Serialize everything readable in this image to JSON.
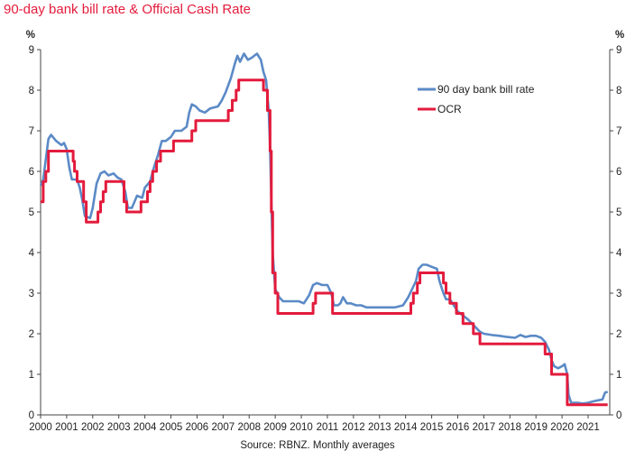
{
  "title": "90-day bank bill rate & Official Cash Rate",
  "source": "Source: RBNZ. Monthly averages",
  "colors": {
    "title": "#e31b3c",
    "bill": "#5b8ac6",
    "ocr": "#e31b3c",
    "axis": "#444444"
  },
  "chart_data": {
    "type": "line",
    "title": "90-day bank bill rate & Official Cash Rate",
    "y_unit_left": "%",
    "y_unit_right": "%",
    "ylim": [
      0,
      9
    ],
    "y_ticks": [
      0,
      1,
      2,
      3,
      4,
      5,
      6,
      7,
      8,
      9
    ],
    "xlim": [
      2000,
      2021.83
    ],
    "x_ticks": [
      2000,
      2001,
      2002,
      2003,
      2004,
      2005,
      2006,
      2007,
      2008,
      2009,
      2010,
      2011,
      2012,
      2013,
      2014,
      2015,
      2016,
      2017,
      2018,
      2019,
      2020,
      2021
    ],
    "grid": false,
    "legend_position": "top-right",
    "series": [
      {
        "name": "90 day bank bill rate",
        "color": "#5b8ac6",
        "points": [
          [
            2000.0,
            5.65
          ],
          [
            2000.1,
            5.8
          ],
          [
            2000.2,
            6.3
          ],
          [
            2000.3,
            6.8
          ],
          [
            2000.4,
            6.9
          ],
          [
            2000.6,
            6.75
          ],
          [
            2000.8,
            6.65
          ],
          [
            2000.9,
            6.7
          ],
          [
            2001.0,
            6.55
          ],
          [
            2001.1,
            6.1
          ],
          [
            2001.2,
            5.8
          ],
          [
            2001.4,
            5.8
          ],
          [
            2001.5,
            5.6
          ],
          [
            2001.6,
            5.3
          ],
          [
            2001.7,
            4.9
          ],
          [
            2001.9,
            4.85
          ],
          [
            2002.0,
            5.1
          ],
          [
            2002.15,
            5.7
          ],
          [
            2002.3,
            5.95
          ],
          [
            2002.45,
            6.0
          ],
          [
            2002.6,
            5.9
          ],
          [
            2002.8,
            5.95
          ],
          [
            2002.95,
            5.85
          ],
          [
            2003.1,
            5.8
          ],
          [
            2003.25,
            5.5
          ],
          [
            2003.35,
            5.1
          ],
          [
            2003.5,
            5.1
          ],
          [
            2003.6,
            5.25
          ],
          [
            2003.7,
            5.4
          ],
          [
            2003.9,
            5.35
          ],
          [
            2004.0,
            5.6
          ],
          [
            2004.2,
            5.75
          ],
          [
            2004.35,
            6.1
          ],
          [
            2004.5,
            6.4
          ],
          [
            2004.65,
            6.75
          ],
          [
            2004.8,
            6.75
          ],
          [
            2005.0,
            6.85
          ],
          [
            2005.15,
            7.0
          ],
          [
            2005.4,
            7.0
          ],
          [
            2005.6,
            7.1
          ],
          [
            2005.7,
            7.45
          ],
          [
            2005.8,
            7.65
          ],
          [
            2005.95,
            7.6
          ],
          [
            2006.1,
            7.5
          ],
          [
            2006.3,
            7.45
          ],
          [
            2006.5,
            7.55
          ],
          [
            2006.8,
            7.6
          ],
          [
            2006.95,
            7.75
          ],
          [
            2007.1,
            7.95
          ],
          [
            2007.3,
            8.3
          ],
          [
            2007.45,
            8.65
          ],
          [
            2007.55,
            8.85
          ],
          [
            2007.65,
            8.7
          ],
          [
            2007.8,
            8.9
          ],
          [
            2007.95,
            8.75
          ],
          [
            2008.1,
            8.8
          ],
          [
            2008.3,
            8.9
          ],
          [
            2008.45,
            8.75
          ],
          [
            2008.55,
            8.45
          ],
          [
            2008.65,
            8.25
          ],
          [
            2008.75,
            7.5
          ],
          [
            2008.8,
            6.6
          ],
          [
            2008.85,
            5.3
          ],
          [
            2008.9,
            4.0
          ],
          [
            2009.0,
            3.1
          ],
          [
            2009.15,
            2.9
          ],
          [
            2009.3,
            2.8
          ],
          [
            2009.6,
            2.8
          ],
          [
            2009.9,
            2.8
          ],
          [
            2010.1,
            2.75
          ],
          [
            2010.3,
            2.95
          ],
          [
            2010.45,
            3.2
          ],
          [
            2010.6,
            3.25
          ],
          [
            2010.8,
            3.2
          ],
          [
            2011.0,
            3.2
          ],
          [
            2011.15,
            3.0
          ],
          [
            2011.25,
            2.7
          ],
          [
            2011.4,
            2.7
          ],
          [
            2011.5,
            2.75
          ],
          [
            2011.6,
            2.9
          ],
          [
            2011.75,
            2.75
          ],
          [
            2011.9,
            2.75
          ],
          [
            2012.1,
            2.7
          ],
          [
            2012.3,
            2.7
          ],
          [
            2012.5,
            2.65
          ],
          [
            2012.8,
            2.65
          ],
          [
            2013.0,
            2.65
          ],
          [
            2013.3,
            2.65
          ],
          [
            2013.6,
            2.65
          ],
          [
            2013.9,
            2.7
          ],
          [
            2014.1,
            2.9
          ],
          [
            2014.25,
            3.1
          ],
          [
            2014.4,
            3.3
          ],
          [
            2014.5,
            3.6
          ],
          [
            2014.65,
            3.7
          ],
          [
            2014.8,
            3.7
          ],
          [
            2015.0,
            3.65
          ],
          [
            2015.2,
            3.6
          ],
          [
            2015.3,
            3.3
          ],
          [
            2015.45,
            3.0
          ],
          [
            2015.55,
            2.85
          ],
          [
            2015.7,
            2.85
          ],
          [
            2015.85,
            2.7
          ],
          [
            2016.0,
            2.55
          ],
          [
            2016.2,
            2.45
          ],
          [
            2016.4,
            2.35
          ],
          [
            2016.55,
            2.25
          ],
          [
            2016.7,
            2.15
          ],
          [
            2016.85,
            2.05
          ],
          [
            2017.0,
            2.0
          ],
          [
            2017.3,
            1.97
          ],
          [
            2017.6,
            1.95
          ],
          [
            2017.9,
            1.92
          ],
          [
            2018.2,
            1.9
          ],
          [
            2018.4,
            1.97
          ],
          [
            2018.6,
            1.92
          ],
          [
            2018.8,
            1.95
          ],
          [
            2019.0,
            1.95
          ],
          [
            2019.2,
            1.9
          ],
          [
            2019.35,
            1.8
          ],
          [
            2019.5,
            1.6
          ],
          [
            2019.6,
            1.35
          ],
          [
            2019.7,
            1.2
          ],
          [
            2019.85,
            1.15
          ],
          [
            2020.0,
            1.2
          ],
          [
            2020.1,
            1.25
          ],
          [
            2020.2,
            1.0
          ],
          [
            2020.25,
            0.5
          ],
          [
            2020.35,
            0.3
          ],
          [
            2020.6,
            0.3
          ],
          [
            2020.8,
            0.28
          ],
          [
            2021.0,
            0.3
          ],
          [
            2021.3,
            0.35
          ],
          [
            2021.55,
            0.38
          ],
          [
            2021.65,
            0.55
          ],
          [
            2021.75,
            0.57
          ]
        ]
      },
      {
        "name": "OCR",
        "color": "#e31b3c",
        "points": [
          [
            2000.0,
            5.25
          ],
          [
            2000.1,
            5.25
          ],
          [
            2000.1,
            5.75
          ],
          [
            2000.2,
            5.75
          ],
          [
            2000.2,
            6.0
          ],
          [
            2000.3,
            6.0
          ],
          [
            2000.3,
            6.5
          ],
          [
            2001.25,
            6.5
          ],
          [
            2001.25,
            6.25
          ],
          [
            2001.3,
            6.25
          ],
          [
            2001.3,
            6.0
          ],
          [
            2001.4,
            6.0
          ],
          [
            2001.4,
            5.75
          ],
          [
            2001.65,
            5.75
          ],
          [
            2001.65,
            5.25
          ],
          [
            2001.75,
            5.25
          ],
          [
            2001.75,
            4.75
          ],
          [
            2002.2,
            4.75
          ],
          [
            2002.2,
            5.0
          ],
          [
            2002.3,
            5.0
          ],
          [
            2002.3,
            5.25
          ],
          [
            2002.4,
            5.25
          ],
          [
            2002.4,
            5.5
          ],
          [
            2002.5,
            5.5
          ],
          [
            2002.5,
            5.75
          ],
          [
            2003.2,
            5.75
          ],
          [
            2003.2,
            5.25
          ],
          [
            2003.3,
            5.25
          ],
          [
            2003.3,
            5.0
          ],
          [
            2003.85,
            5.0
          ],
          [
            2003.85,
            5.25
          ],
          [
            2004.1,
            5.25
          ],
          [
            2004.1,
            5.5
          ],
          [
            2004.2,
            5.5
          ],
          [
            2004.2,
            5.75
          ],
          [
            2004.3,
            5.75
          ],
          [
            2004.3,
            6.0
          ],
          [
            2004.45,
            6.0
          ],
          [
            2004.45,
            6.25
          ],
          [
            2004.6,
            6.25
          ],
          [
            2004.6,
            6.5
          ],
          [
            2005.1,
            6.5
          ],
          [
            2005.1,
            6.75
          ],
          [
            2005.8,
            6.75
          ],
          [
            2005.8,
            7.0
          ],
          [
            2005.95,
            7.0
          ],
          [
            2005.95,
            7.25
          ],
          [
            2007.2,
            7.25
          ],
          [
            2007.2,
            7.5
          ],
          [
            2007.35,
            7.5
          ],
          [
            2007.35,
            7.75
          ],
          [
            2007.5,
            7.75
          ],
          [
            2007.5,
            8.0
          ],
          [
            2007.6,
            8.0
          ],
          [
            2007.6,
            8.25
          ],
          [
            2008.55,
            8.25
          ],
          [
            2008.55,
            8.0
          ],
          [
            2008.7,
            8.0
          ],
          [
            2008.7,
            7.5
          ],
          [
            2008.8,
            7.5
          ],
          [
            2008.8,
            6.5
          ],
          [
            2008.85,
            6.5
          ],
          [
            2008.85,
            5.0
          ],
          [
            2008.9,
            5.0
          ],
          [
            2008.9,
            3.5
          ],
          [
            2009.0,
            3.5
          ],
          [
            2009.0,
            3.0
          ],
          [
            2009.1,
            3.0
          ],
          [
            2009.1,
            2.5
          ],
          [
            2010.45,
            2.5
          ],
          [
            2010.45,
            2.75
          ],
          [
            2010.55,
            2.75
          ],
          [
            2010.55,
            3.0
          ],
          [
            2011.2,
            3.0
          ],
          [
            2011.2,
            2.5
          ],
          [
            2014.2,
            2.5
          ],
          [
            2014.2,
            2.75
          ],
          [
            2014.3,
            2.75
          ],
          [
            2014.3,
            3.0
          ],
          [
            2014.45,
            3.0
          ],
          [
            2014.45,
            3.25
          ],
          [
            2014.55,
            3.25
          ],
          [
            2014.55,
            3.5
          ],
          [
            2015.45,
            3.5
          ],
          [
            2015.45,
            3.25
          ],
          [
            2015.55,
            3.25
          ],
          [
            2015.55,
            3.0
          ],
          [
            2015.7,
            3.0
          ],
          [
            2015.7,
            2.75
          ],
          [
            2015.95,
            2.75
          ],
          [
            2015.95,
            2.5
          ],
          [
            2016.2,
            2.5
          ],
          [
            2016.2,
            2.25
          ],
          [
            2016.6,
            2.25
          ],
          [
            2016.6,
            2.0
          ],
          [
            2016.85,
            2.0
          ],
          [
            2016.85,
            1.75
          ],
          [
            2019.35,
            1.75
          ],
          [
            2019.35,
            1.5
          ],
          [
            2019.6,
            1.5
          ],
          [
            2019.6,
            1.0
          ],
          [
            2020.2,
            1.0
          ],
          [
            2020.2,
            0.25
          ],
          [
            2021.75,
            0.25
          ]
        ]
      }
    ]
  }
}
